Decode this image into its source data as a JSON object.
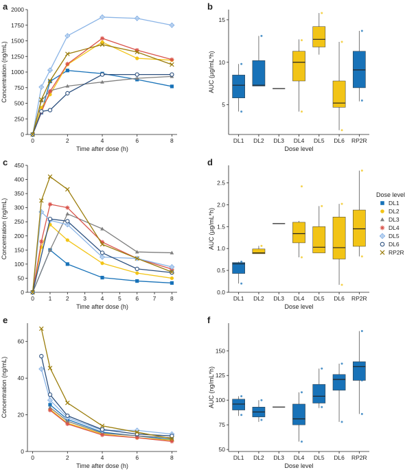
{
  "colors": {
    "DL1": "#1872b8",
    "DL2": "#f2c416",
    "DL3": "#7f7f7f",
    "DL4": "#d9534a",
    "DL5": "#8ab4e6",
    "DL6": "#2b4f7e",
    "RP2R": "#9a7c0a",
    "box_blue": "#1872b8",
    "box_gold": "#f2c416"
  },
  "legend": {
    "title": "Dose level",
    "entries": [
      {
        "name": "DL1",
        "marker": "square"
      },
      {
        "name": "DL2",
        "marker": "circle-filled"
      },
      {
        "name": "DL3",
        "marker": "triangle"
      },
      {
        "name": "DL4",
        "marker": "asterisk"
      },
      {
        "name": "DL5",
        "marker": "diamond-plus"
      },
      {
        "name": "DL6",
        "marker": "circle-open"
      },
      {
        "name": "RP2R",
        "marker": "x"
      }
    ]
  },
  "chart_data": [
    {
      "panel": "a",
      "type": "line",
      "xlabel": "Time after dose (h)",
      "ylabel": "Concentration (ng/mL)",
      "xlim": [
        -0.3,
        8.3
      ],
      "ylim": [
        0,
        2000
      ],
      "xticks": [
        0,
        2,
        4,
        6,
        8
      ],
      "yticks": [
        0,
        250,
        500,
        750,
        1000,
        1250,
        1500,
        1750,
        2000
      ],
      "series": [
        {
          "name": "DL1",
          "x": [
            0,
            0.5,
            1,
            2,
            4,
            6,
            8
          ],
          "y": [
            0,
            350,
            850,
            1025,
            975,
            880,
            770
          ]
        },
        {
          "name": "DL2",
          "x": [
            0,
            0.5,
            1,
            2,
            4,
            6,
            8
          ],
          "y": [
            0,
            430,
            640,
            1120,
            1480,
            1220,
            1190
          ]
        },
        {
          "name": "DL3",
          "x": [
            0,
            0.5,
            1,
            2,
            4,
            6,
            8
          ],
          "y": [
            0,
            540,
            700,
            775,
            840,
            900,
            930
          ]
        },
        {
          "name": "DL4",
          "x": [
            0,
            0.5,
            1,
            2,
            4,
            6,
            8
          ],
          "y": [
            0,
            360,
            690,
            1130,
            1540,
            1350,
            1200
          ]
        },
        {
          "name": "DL5",
          "x": [
            0,
            0.5,
            1,
            2,
            4,
            6,
            8
          ],
          "y": [
            0,
            760,
            1030,
            1580,
            1880,
            1860,
            1750
          ]
        },
        {
          "name": "DL6",
          "x": [
            0,
            0.5,
            1,
            2,
            4,
            6,
            8
          ],
          "y": [
            0,
            370,
            390,
            660,
            960,
            960,
            960
          ]
        },
        {
          "name": "RP2R",
          "x": [
            0,
            0.5,
            1,
            2,
            4,
            6,
            8
          ],
          "y": [
            0,
            560,
            860,
            1290,
            1440,
            1320,
            1120
          ]
        }
      ]
    },
    {
      "panel": "b",
      "type": "box",
      "xlabel": "Dose level",
      "ylabel": "AUC (µg/mL*h)",
      "ylim": [
        1.5,
        16.2
      ],
      "yticks": [
        5,
        10,
        15
      ],
      "categories": [
        "DL1",
        "DL2",
        "DL3",
        "DL4",
        "DL5",
        "DL6",
        "RP2R"
      ],
      "boxes": [
        {
          "cat": "DL1",
          "q1": 5.8,
          "median": 7.3,
          "q3": 8.5,
          "wlo": 4.2,
          "whi": 9.8,
          "points": [
            4.2,
            9.8
          ]
        },
        {
          "cat": "DL2",
          "q1": 7.2,
          "median": 7.3,
          "q3": 10.2,
          "wlo": 7.2,
          "whi": 13.1,
          "points": [
            13.1
          ]
        },
        {
          "cat": "DL3",
          "q1": 6.9,
          "median": 6.9,
          "q3": 6.9,
          "wlo": 6.9,
          "whi": 6.9,
          "points": []
        },
        {
          "cat": "DL4",
          "q1": 7.8,
          "median": 10.0,
          "q3": 11.3,
          "wlo": 4.2,
          "whi": 12.7,
          "points": [
            4.2,
            12.6
          ]
        },
        {
          "cat": "DL5",
          "q1": 11.8,
          "median": 12.7,
          "q3": 14.2,
          "wlo": 10.9,
          "whi": 15.8,
          "points": [
            15.8
          ]
        },
        {
          "cat": "DL6",
          "q1": 4.7,
          "median": 5.2,
          "q3": 7.8,
          "wlo": 2.0,
          "whi": 12.4,
          "points": [
            2.0,
            12.4
          ]
        },
        {
          "cat": "RP2R",
          "q1": 7.0,
          "median": 9.1,
          "q3": 11.3,
          "wlo": 5.4,
          "whi": 13.7,
          "points": [
            5.5,
            13.7
          ]
        }
      ]
    },
    {
      "panel": "c",
      "type": "line",
      "xlabel": "Time after dose (h)",
      "ylabel": "Concentration (ng/mL)",
      "xlim": [
        -0.3,
        8.3
      ],
      "ylim": [
        0,
        450
      ],
      "xticks": [
        0,
        1,
        2,
        3,
        4,
        5,
        6,
        7,
        8
      ],
      "yticks": [
        0,
        50,
        100,
        150,
        200,
        250,
        300,
        350,
        400,
        450
      ],
      "series": [
        {
          "name": "DL1",
          "x": [
            0,
            1,
            2,
            4,
            6,
            8
          ],
          "y": [
            0,
            150,
            100,
            52,
            40,
            33
          ]
        },
        {
          "name": "DL2",
          "x": [
            0,
            0.5,
            1,
            2,
            4,
            6,
            8
          ],
          "y": [
            0,
            160,
            240,
            185,
            103,
            68,
            50
          ]
        },
        {
          "name": "DL3",
          "x": [
            0,
            1,
            2,
            4,
            6,
            8
          ],
          "y": [
            0,
            150,
            278,
            225,
            143,
            140
          ]
        },
        {
          "name": "DL4",
          "x": [
            0,
            0.5,
            1,
            2,
            4,
            6,
            8
          ],
          "y": [
            0,
            180,
            312,
            300,
            178,
            120,
            82
          ]
        },
        {
          "name": "DL5",
          "x": [
            0,
            0.5,
            1,
            2,
            4,
            6,
            8
          ],
          "y": [
            0,
            285,
            255,
            240,
            125,
            120,
            90
          ]
        },
        {
          "name": "DL6",
          "x": [
            0,
            1,
            2,
            4,
            6,
            8
          ],
          "y": [
            0,
            260,
            252,
            140,
            83,
            70
          ]
        },
        {
          "name": "RP2R",
          "x": [
            0,
            0.5,
            1,
            2,
            4,
            6,
            8
          ],
          "y": [
            0,
            325,
            410,
            365,
            170,
            120,
            72
          ]
        }
      ]
    },
    {
      "panel": "d",
      "type": "box",
      "xlabel": "Dose level",
      "ylabel": "AUC (µg/mL*h)",
      "ylim": [
        0,
        2.9
      ],
      "yticks": [
        0,
        0.5,
        1.0,
        1.5,
        2.0,
        2.5
      ],
      "categories": [
        "DL1",
        "DL2",
        "DL3",
        "DL4",
        "DL5",
        "DL6",
        "RP2R"
      ],
      "boxes": [
        {
          "cat": "DL1",
          "q1": 0.43,
          "median": 0.65,
          "q3": 0.68,
          "wlo": 0.2,
          "whi": 0.7,
          "points": [
            0.2,
            0.7
          ]
        },
        {
          "cat": "DL2",
          "q1": 0.88,
          "median": 0.9,
          "q3": 0.99,
          "wlo": 0.88,
          "whi": 1.06,
          "points": [
            1.06
          ]
        },
        {
          "cat": "DL3",
          "q1": 1.57,
          "median": 1.57,
          "q3": 1.57,
          "wlo": 1.57,
          "whi": 1.57,
          "points": []
        },
        {
          "cat": "DL4",
          "q1": 1.13,
          "median": 1.34,
          "q3": 1.6,
          "wlo": 0.8,
          "whi": 1.63,
          "points": [
            0.8,
            2.42
          ]
        },
        {
          "cat": "DL5",
          "q1": 0.9,
          "median": 1.03,
          "q3": 1.5,
          "wlo": 0.9,
          "whi": 1.97,
          "points": [
            1.97
          ]
        },
        {
          "cat": "DL6",
          "q1": 0.76,
          "median": 1.02,
          "q3": 1.72,
          "wlo": 0.17,
          "whi": 2.02,
          "points": [
            0.17,
            2.02
          ]
        },
        {
          "cat": "RP2R",
          "q1": 1.05,
          "median": 1.45,
          "q3": 1.88,
          "wlo": 0.82,
          "whi": 2.78,
          "points": [
            0.82,
            2.78
          ]
        }
      ]
    },
    {
      "panel": "e",
      "type": "line",
      "xlabel": "Time after dose (h)",
      "ylabel": "Concentration (ng/mL)",
      "xlim": [
        -0.3,
        8.3
      ],
      "ylim": [
        0,
        70
      ],
      "xticks": [
        0,
        2,
        4,
        6,
        8
      ],
      "yticks": [
        0,
        20,
        40,
        60
      ],
      "series": [
        {
          "name": "DL1",
          "x": [
            1,
            2,
            4,
            6,
            8
          ],
          "y": [
            25.5,
            17.5,
            10.5,
            8.5,
            6.5
          ]
        },
        {
          "name": "DL2",
          "x": [
            1,
            2,
            4,
            6,
            8
          ],
          "y": [
            23,
            15.5,
            9.5,
            7.5,
            6.2
          ]
        },
        {
          "name": "DL3",
          "x": [
            1,
            2,
            4,
            6,
            8
          ],
          "y": [
            24,
            16.5,
            10,
            8.5,
            7.5
          ]
        },
        {
          "name": "DL4",
          "x": [
            1,
            2,
            4,
            6,
            8
          ],
          "y": [
            22.5,
            15,
            9,
            7.5,
            5.5
          ]
        },
        {
          "name": "DL5",
          "x": [
            0.5,
            1,
            2,
            4,
            6,
            8
          ],
          "y": [
            45,
            28,
            18.5,
            11.5,
            11.5,
            9.5
          ]
        },
        {
          "name": "DL6",
          "x": [
            0.5,
            1,
            2,
            4,
            6,
            8
          ],
          "y": [
            52,
            31,
            19.5,
            12,
            9.5,
            8.5
          ]
        },
        {
          "name": "RP2R",
          "x": [
            0.5,
            1,
            2,
            4,
            6,
            8
          ],
          "y": [
            67,
            45.5,
            26.5,
            14,
            10.5,
            7
          ]
        }
      ]
    },
    {
      "panel": "f",
      "type": "box",
      "xlabel": "Dose level",
      "ylabel": "AUC (ng/mL*h)",
      "ylim": [
        48,
        178
      ],
      "yticks": [
        50,
        75,
        100,
        125,
        150
      ],
      "categories": [
        "DL1",
        "DL2",
        "DL3",
        "DL4",
        "DL5",
        "DL6",
        "RP2R"
      ],
      "boxes": [
        {
          "cat": "DL1",
          "q1": 90,
          "median": 96,
          "q3": 101,
          "wlo": 84,
          "whi": 104,
          "points": [
            85,
            104
          ]
        },
        {
          "cat": "DL2",
          "q1": 83,
          "median": 88,
          "q3": 93,
          "wlo": 78,
          "whi": 100,
          "points": [
            80,
            100
          ]
        },
        {
          "cat": "DL3",
          "q1": 93,
          "median": 93,
          "q3": 93,
          "wlo": 93,
          "whi": 93,
          "points": []
        },
        {
          "cat": "DL4",
          "q1": 75,
          "median": 81,
          "q3": 96,
          "wlo": 58,
          "whi": 108,
          "points": [
            58,
            108
          ]
        },
        {
          "cat": "DL5",
          "q1": 97,
          "median": 104,
          "q3": 116,
          "wlo": 92,
          "whi": 132,
          "points": [
            93,
            132
          ]
        },
        {
          "cat": "DL6",
          "q1": 110,
          "median": 121,
          "q3": 126,
          "wlo": 78,
          "whi": 137,
          "points": [
            78,
            137
          ]
        },
        {
          "cat": "RP2R",
          "q1": 120,
          "median": 134,
          "q3": 139,
          "wlo": 86,
          "whi": 170,
          "points": [
            86,
            120,
            170
          ]
        }
      ]
    }
  ],
  "panel_letters": [
    "a",
    "b",
    "c",
    "d",
    "e",
    "f"
  ]
}
